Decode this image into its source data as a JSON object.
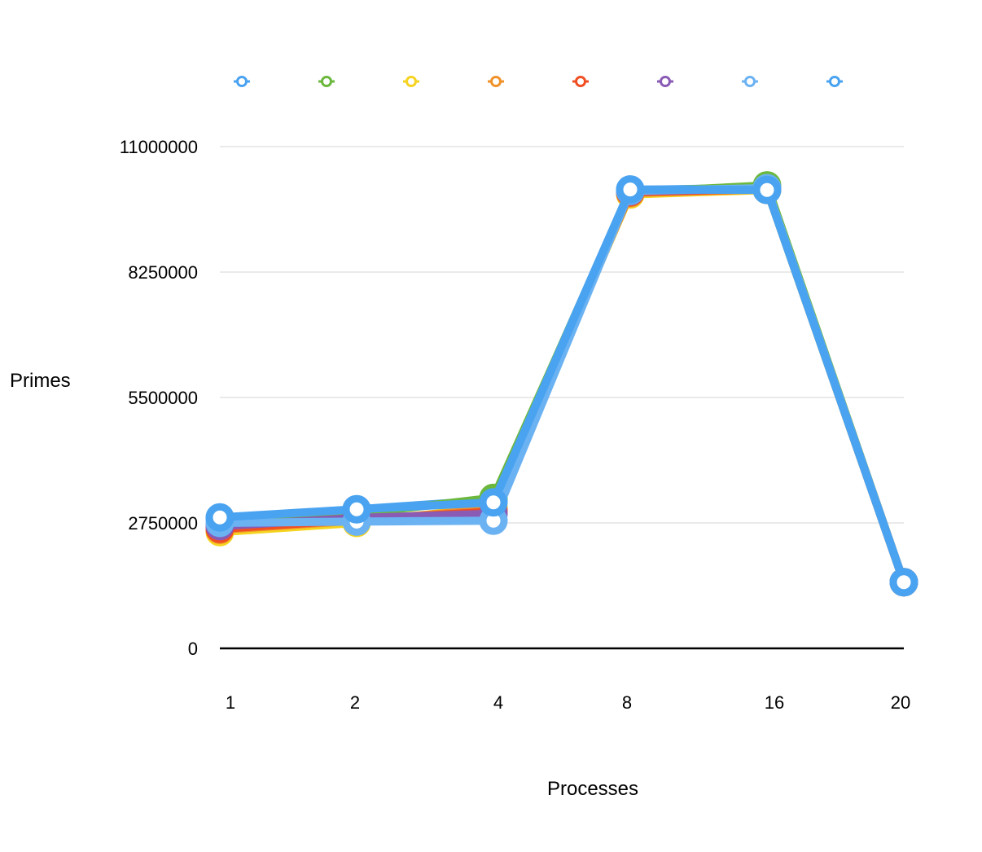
{
  "chart_data": {
    "type": "line",
    "title": "",
    "xlabel": "Processes",
    "ylabel": "Primes",
    "categories": [
      "1",
      "2",
      "4",
      "8",
      "16",
      "20"
    ],
    "ylim": [
      0,
      11000000
    ],
    "yticks": [
      0,
      2750000,
      5500000,
      8250000,
      11000000
    ],
    "ytick_labels": [
      "0",
      "2750000",
      "5500000",
      "8250000",
      "11000000"
    ],
    "grid": true,
    "legend_position": "top",
    "series": [
      {
        "color": "#4aa3f0",
        "values": [
          2850000,
          3050000,
          3250000,
          10050000,
          10100000,
          1450000
        ]
      },
      {
        "color": "#6bb83c",
        "values": [
          2700000,
          2950000,
          3300000,
          10000000,
          10150000,
          1450000
        ]
      },
      {
        "color": "#f5d320",
        "values": [
          2550000,
          2750000,
          3100000,
          9950000,
          10050000,
          1450000
        ]
      },
      {
        "color": "#f0922a",
        "values": [
          2600000,
          2800000,
          3050000,
          9980000,
          10060000,
          1450000
        ]
      },
      {
        "color": "#f04e23",
        "values": [
          2620000,
          2820000,
          3000000,
          10000000,
          10070000,
          1450000
        ]
      },
      {
        "color": "#8a5bb5",
        "values": [
          2680000,
          2860000,
          2950000,
          10020000,
          10080000,
          1450000
        ]
      },
      {
        "color": "#6bb2f2",
        "values": [
          2750000,
          2780000,
          2800000,
          10030000,
          10090000,
          1450000
        ]
      },
      {
        "color": "#4aa3f0",
        "values": [
          2870000,
          3050000,
          3200000,
          10060000,
          10050000,
          1450000
        ]
      }
    ]
  }
}
